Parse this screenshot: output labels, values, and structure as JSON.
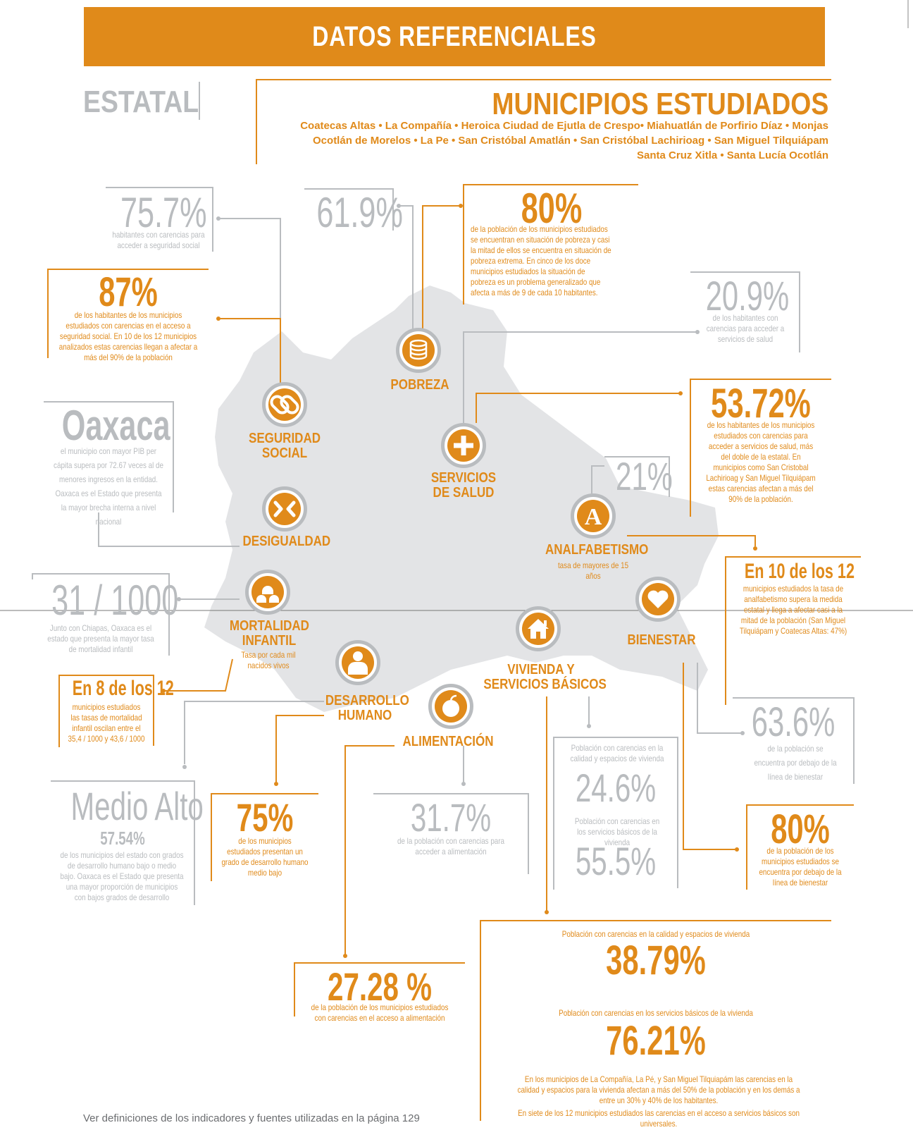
{
  "header": {
    "title": "DATOS REFERENCIALES"
  },
  "estatal": "ESTATAL",
  "municipios": {
    "title": "MUNICIPIOS ESTUDIADOS",
    "line1": "Coatecas Altas • La Compañía • Heroica Ciudad de Ejutla de Crespo• Miahuatlán de Porfirio Díaz • Monjas",
    "line2": "Ocotlán de Morelos • La Pe • San Cristóbal Amatlán • San Cristóbal Lachirioag • San Miguel Tilquiápam",
    "line3": "Santa Cruz Xitla • Santa Lucía Ocotlán"
  },
  "categories": {
    "pobreza": "POBREZA",
    "seguridad1": "SEGURIDAD",
    "seguridad2": "SOCIAL",
    "salud1": "SERVICIOS",
    "salud2": "DE SALUD",
    "desigualdad": "DESIGUALDAD",
    "analfabetismo": "ANALFABETISMO",
    "analfabetismo_sub": "tasa de mayores de 15 años",
    "mortalidad1": "MORTALIDAD",
    "mortalidad2": "INFANTIL",
    "mortalidad_sub": "Tasa por cada mil nacidos vivos",
    "bienestar": "BIENESTAR",
    "vivienda1": "VIVIENDA Y",
    "vivienda2": "SERVICIOS BÁSICOS",
    "desarrollo1": "DESARROLLO",
    "desarrollo2": "HUMANO",
    "alimentacion": "ALIMENTACIÓN"
  },
  "stats": {
    "seg_estatal": {
      "value": "75.7%",
      "text": "habitantes con carencias para acceder a seguridad social"
    },
    "seg_mun": {
      "value": "87%",
      "text": "de los habitantes de los municipios estudiados con carencias en el acceso a seguridad social. En 10 de los 12 municipios analizados estas carencias llegan a afectar a más del 90% de la población"
    },
    "pob_estatal": {
      "value": "61.9%"
    },
    "pob_mun": {
      "value": "80%",
      "text": "de la población de los municipios estudiados se encuentran en situación de pobreza y casi la mitad de ellos se encuentra en situación de pobreza extrema. En cinco de los doce municipios estudiados la situación de pobreza es un problema generalizado que afecta a más de 9 de cada 10 habitantes."
    },
    "salud_estatal": {
      "value": "20.9%",
      "text": "de los habitantes con carencias para acceder a servicios de salud"
    },
    "salud_mun": {
      "value": "53.72%",
      "text": "de los habitantes de los municipios estudiados con carencias para acceder a servicios de salud, más del doble de la estatal. En municipios como San Cristobal Lachirioag y San Miguel Tilquiápam estas carencias afectan a más del 90% de la población."
    },
    "des_estatal": {
      "value": "Oaxaca",
      "text": "el municipio con mayor PIB per cápita supera por 72.67 veces al de menores ingresos en la entidad. Oaxaca es el Estado que presenta la mayor brecha interna a nivel nacional"
    },
    "analf_estatal": {
      "value": "21%"
    },
    "analf_mun": {
      "value": "En 10 de los 12",
      "text": "municipios estudiados la tasa de analfabetismo supera la medida estatal y llega a afectar casi a la mitad de la población (San Miguel Tilquiápam y Coatecas Altas: 47%)"
    },
    "mort_estatal": {
      "value": "31 / 1000",
      "text": "Junto con Chiapas, Oaxaca es el estado que presenta la mayor tasa de mortalidad infantil"
    },
    "mort_mun": {
      "value": "En 8 de los 12",
      "text": "municipios estudiados las tasas de mortalidad infantil oscilan entre el 35,4 / 1000 y 43,6 / 1000"
    },
    "bien_estatal": {
      "value": "63.6%",
      "text": "de la población se encuentra por debajo de la línea de bienestar"
    },
    "bien_mun": {
      "value": "80%",
      "text": "de la población de los municipios estudiados se encuentra por debajo de la línea de bienestar"
    },
    "dh_estatal": {
      "value": "Medio Alto",
      "value2": "57.54%",
      "text": "de los municipios del estado con grados de desarrollo humano bajo o medio bajo. Oaxaca es el Estado que presenta una mayor proporción de municipios con bajos grados de desarrollo"
    },
    "dh_mun": {
      "value": "75%",
      "text": "de los municipios estudiados presentan un grado de desarrollo humano medio bajo"
    },
    "ali_estatal": {
      "value": "31.7%",
      "text": "de la población con carencias para acceder a alimentación"
    },
    "ali_mun": {
      "value": "27.28 %",
      "text": "de la población de los municipios estudiados con carencias en el acceso a alimentación"
    },
    "viv_estatal": {
      "label1": "Población con carencias en la calidad y espacios de vivienda",
      "value1": "24.6%",
      "label2": "Población con carencias en los servicios básicos de la vivienda",
      "value2": "55.5%"
    },
    "viv_mun": {
      "label1": "Población con carencias en la calidad y espacios de vivienda",
      "value1": "38.79%",
      "label2": "Población con carencias en los servicios básicos de la vivienda",
      "value2": "76.21%",
      "text1": "En los municipios de La Compañía, La Pé, y San Miguel Tilquiapám las carencias en la calidad y espacios para la vivienda afectan a más del 50% de la población y en los demás a entre un 30% y 40% de los habitantes.",
      "text2": "En siete de los 12 municipios estudiados las carencias en el acceso a servicios básicos son universales."
    }
  },
  "footer": "Ver definiciones de los indicadores y fuentes utilizadas en la página 129",
  "colors": {
    "orange": "#e08a1a",
    "gray": "#b9bcbf",
    "map": "#e3e4e6"
  }
}
